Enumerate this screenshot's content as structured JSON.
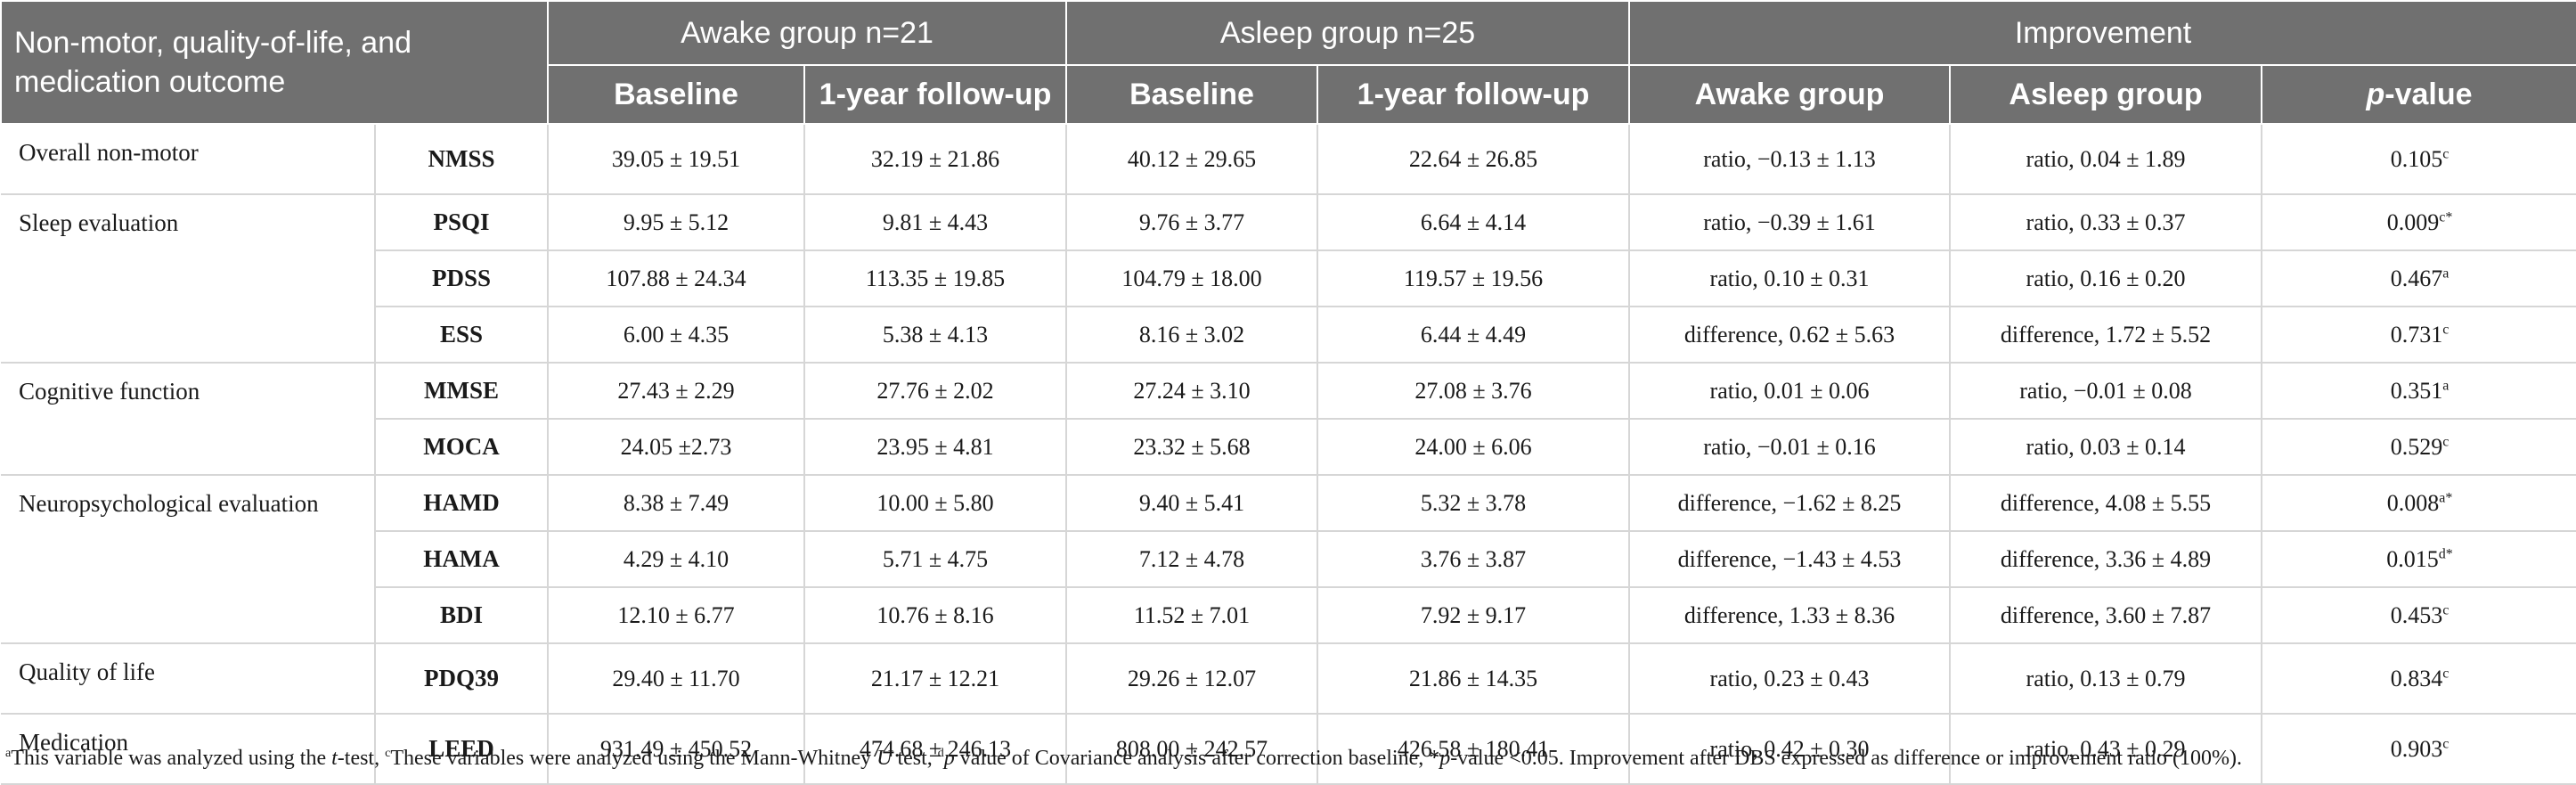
{
  "header": {
    "corner_line1": "Non-motor, quality-of-life, and",
    "corner_line2": "medication outcome",
    "awake_group": "Awake group n=21",
    "asleep_group": "Asleep group n=25",
    "improvement": "Improvement",
    "baseline": "Baseline",
    "follow_up": "1-year follow-up",
    "awake_sub": "Awake group",
    "asleep_sub": "Asleep group",
    "pvalue_p": "p",
    "pvalue_rest": "-value"
  },
  "categories": [
    {
      "name": "Overall non-motor",
      "rowspan": 1
    },
    {
      "name": "Sleep evaluation",
      "rowspan": 3
    },
    {
      "name": "Cognitive function",
      "rowspan": 2
    },
    {
      "name": "Neuropsychological evaluation",
      "rowspan": 3
    },
    {
      "name": "Quality of life",
      "rowspan": 1
    },
    {
      "name": "Medication",
      "rowspan": 1
    }
  ],
  "rows": [
    {
      "var": "NMSS",
      "awake_base": "39.05 ± 19.51",
      "awake_fu": "32.19 ± 21.86",
      "asleep_base": "40.12 ± 29.65",
      "asleep_fu": "22.64 ± 26.85",
      "imp_awake": "ratio, −0.13 ± 1.13",
      "imp_asleep": "ratio, 0.04 ± 1.89",
      "p": "0.105",
      "sup": "c"
    },
    {
      "var": "PSQI",
      "awake_base": "9.95 ± 5.12",
      "awake_fu": "9.81 ± 4.43",
      "asleep_base": "9.76 ± 3.77",
      "asleep_fu": "6.64 ± 4.14",
      "imp_awake": "ratio, −0.39 ± 1.61",
      "imp_asleep": "ratio, 0.33 ± 0.37",
      "p": "0.009",
      "sup": "c*"
    },
    {
      "var": "PDSS",
      "awake_base": "107.88 ± 24.34",
      "awake_fu": "113.35 ± 19.85",
      "asleep_base": "104.79 ± 18.00",
      "asleep_fu": "119.57 ± 19.56",
      "imp_awake": "ratio, 0.10 ± 0.31",
      "imp_asleep": "ratio, 0.16 ± 0.20",
      "p": "0.467",
      "sup": "a"
    },
    {
      "var": "ESS",
      "awake_base": "6.00 ± 4.35",
      "awake_fu": "5.38 ± 4.13",
      "asleep_base": "8.16 ± 3.02",
      "asleep_fu": "6.44 ± 4.49",
      "imp_awake": "difference, 0.62 ± 5.63",
      "imp_asleep": "difference, 1.72 ± 5.52",
      "p": "0.731",
      "sup": "c"
    },
    {
      "var": "MMSE",
      "awake_base": "27.43 ± 2.29",
      "awake_fu": "27.76 ± 2.02",
      "asleep_base": "27.24 ± 3.10",
      "asleep_fu": "27.08 ± 3.76",
      "imp_awake": "ratio, 0.01 ± 0.06",
      "imp_asleep": "ratio, −0.01 ± 0.08",
      "p": "0.351",
      "sup": "a"
    },
    {
      "var": "MOCA",
      "awake_base": "24.05 ±2.73",
      "awake_fu": "23.95 ± 4.81",
      "asleep_base": "23.32 ± 5.68",
      "asleep_fu": "24.00 ± 6.06",
      "imp_awake": "ratio, −0.01 ± 0.16",
      "imp_asleep": "ratio, 0.03 ± 0.14",
      "p": "0.529",
      "sup": "c"
    },
    {
      "var": "HAMD",
      "awake_base": "8.38 ± 7.49",
      "awake_fu": "10.00 ± 5.80",
      "asleep_base": "9.40 ± 5.41",
      "asleep_fu": "5.32 ± 3.78",
      "imp_awake": "difference, −1.62 ± 8.25",
      "imp_asleep": "difference, 4.08 ± 5.55",
      "p": "0.008",
      "sup": "a*"
    },
    {
      "var": "HAMA",
      "awake_base": "4.29 ± 4.10",
      "awake_fu": "5.71 ± 4.75",
      "asleep_base": "7.12 ± 4.78",
      "asleep_fu": "3.76 ± 3.87",
      "imp_awake": "difference, −1.43 ± 4.53",
      "imp_asleep": "difference, 3.36 ± 4.89",
      "p": "0.015",
      "sup": "d*"
    },
    {
      "var": "BDI",
      "awake_base": "12.10 ± 6.77",
      "awake_fu": "10.76 ± 8.16",
      "asleep_base": "11.52 ± 7.01",
      "asleep_fu": "7.92 ± 9.17",
      "imp_awake": "difference, 1.33 ± 8.36",
      "imp_asleep": "difference, 3.60 ± 7.87",
      "p": "0.453",
      "sup": "c"
    },
    {
      "var": "PDQ39",
      "awake_base": "29.40 ± 11.70",
      "awake_fu": "21.17 ± 12.21",
      "asleep_base": "29.26 ± 12.07",
      "asleep_fu": "21.86 ± 14.35",
      "imp_awake": "ratio, 0.23 ± 0.43",
      "imp_asleep": "ratio, 0.13 ± 0.79",
      "p": "0.834",
      "sup": "c"
    },
    {
      "var": "LEED",
      "awake_base": "931.49 ± 450.52",
      "awake_fu": "474.68 ± 246.13",
      "asleep_base": "808.00 ± 242.57",
      "asleep_fu": "426.58 ± 180.41",
      "imp_awake": "ratio, 0.42 ± 0.30",
      "imp_asleep": "ratio, 0.43 ± 0.29",
      "p": "0.903",
      "sup": "c"
    }
  ],
  "footnote": {
    "a_sup": "a",
    "a_text": "This variable was analyzed using the ",
    "a_t": "t",
    "a_text2": "-test, ",
    "c_sup": "c",
    "c_text": "These variables were analyzed using the Mann-Whitney ",
    "c_u": "U",
    "c_text2": " test, ",
    "d_sup": "d",
    "d_p": "p",
    "d_text": " value of Covariance analysis after correction baseline, *",
    "star_p": "p",
    "rest": "-value <0.05. Improvement after DBS expressed as difference or improvement ratio (100%)."
  }
}
